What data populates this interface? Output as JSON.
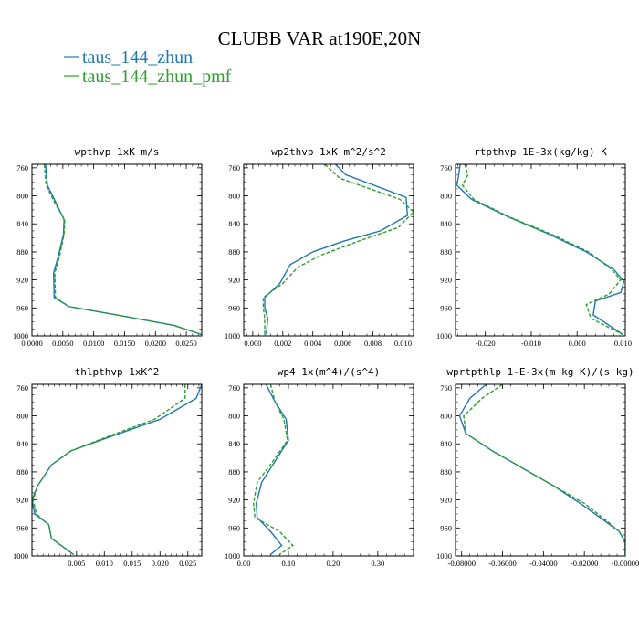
{
  "figure": {
    "title": "CLUBB VAR at190E,20N",
    "legend": [
      {
        "name": "taus_144_zhun",
        "color": "#1f77b4"
      },
      {
        "name": "taus_144_zhun_pmf",
        "color": "#2ca02c"
      }
    ]
  },
  "chart_data": [
    {
      "type": "line",
      "title": "wpthvp  1xK m/s",
      "xlim": [
        0.0,
        0.0275
      ],
      "ylim": [
        1000,
        755
      ],
      "xticks": [
        "0.0000",
        "0.0050",
        "0.0100",
        "0.0150",
        "0.0200",
        "0.0250"
      ],
      "xtick_values": [
        0.0,
        0.005,
        0.01,
        0.015,
        0.02,
        0.025
      ],
      "yticks": [
        "760",
        "800",
        "840",
        "880",
        "920",
        "960",
        "1000"
      ],
      "ytick_values": [
        760,
        800,
        840,
        880,
        920,
        960,
        1000
      ],
      "series": [
        {
          "name": "taus_144_zhun",
          "color": "#1f77b4",
          "dash": "",
          "points": [
            [
              0.0022,
              755
            ],
            [
              0.0025,
              785
            ],
            [
              0.004,
              812
            ],
            [
              0.0052,
              834
            ],
            [
              0.0051,
              855
            ],
            [
              0.0043,
              885
            ],
            [
              0.0035,
              910
            ],
            [
              0.0036,
              945
            ],
            [
              0.006,
              958
            ],
            [
              0.015,
              972
            ],
            [
              0.023,
              985
            ],
            [
              0.0275,
              998
            ]
          ]
        },
        {
          "name": "taus_144_zhun_pmf",
          "color": "#2ca02c",
          "dash": "4,2",
          "points": [
            [
              0.002,
              755
            ],
            [
              0.0023,
              785
            ],
            [
              0.0038,
              812
            ],
            [
              0.0053,
              834
            ],
            [
              0.0052,
              855
            ],
            [
              0.0045,
              885
            ],
            [
              0.0037,
              910
            ],
            [
              0.0038,
              945
            ],
            [
              0.006,
              958
            ],
            [
              0.015,
              972
            ],
            [
              0.023,
              985
            ],
            [
              0.0275,
              998
            ]
          ]
        }
      ]
    },
    {
      "type": "line",
      "title": "wp2thvp  1xK m^2/s^2",
      "xlim": [
        -0.0006,
        0.0107
      ],
      "ylim": [
        1000,
        755
      ],
      "xticks": [
        "0.000",
        "0.002",
        "0.004",
        "0.006",
        "0.008",
        "0.010"
      ],
      "xtick_values": [
        0.0,
        0.002,
        0.004,
        0.006,
        0.008,
        0.01
      ],
      "yticks": [
        "760",
        "800",
        "840",
        "880",
        "920",
        "960",
        "1000"
      ],
      "ytick_values": [
        760,
        800,
        840,
        880,
        920,
        960,
        1000
      ],
      "series": [
        {
          "name": "taus_144_zhun",
          "color": "#1f77b4",
          "dash": "",
          "points": [
            [
              0.0055,
              755
            ],
            [
              0.0062,
              770
            ],
            [
              0.0102,
              802
            ],
            [
              0.0103,
              828
            ],
            [
              0.0085,
              850
            ],
            [
              0.006,
              865
            ],
            [
              0.004,
              880
            ],
            [
              0.0025,
              898
            ],
            [
              0.0018,
              925
            ],
            [
              0.0008,
              945
            ],
            [
              0.0008,
              960
            ],
            [
              0.001,
              975
            ],
            [
              0.0009,
              998
            ]
          ]
        },
        {
          "name": "taus_144_zhun_pmf",
          "color": "#2ca02c",
          "dash": "4,2",
          "points": [
            [
              0.0048,
              755
            ],
            [
              0.0058,
              775
            ],
            [
              0.0098,
              805
            ],
            [
              0.0107,
              823
            ],
            [
              0.0097,
              845
            ],
            [
              0.007,
              865
            ],
            [
              0.0045,
              885
            ],
            [
              0.003,
              902
            ],
            [
              0.002,
              925
            ],
            [
              0.0007,
              945
            ],
            [
              0.0007,
              960
            ],
            [
              0.0008,
              975
            ],
            [
              0.0008,
              998
            ]
          ]
        }
      ]
    },
    {
      "type": "line",
      "title": "rtpthvp  1E-3x(kg/kg) K",
      "xlim": [
        -0.0265,
        0.0105
      ],
      "ylim": [
        1000,
        755
      ],
      "xticks": [
        "-0.020",
        "-0.010",
        "0.000",
        "0.010"
      ],
      "xtick_values": [
        -0.02,
        -0.01,
        0.0,
        0.01
      ],
      "yticks": [
        "760",
        "800",
        "840",
        "880",
        "920",
        "960",
        "1000"
      ],
      "ytick_values": [
        760,
        800,
        840,
        880,
        920,
        960,
        1000
      ],
      "series": [
        {
          "name": "taus_144_zhun",
          "color": "#1f77b4",
          "dash": "",
          "points": [
            [
              -0.0255,
              755
            ],
            [
              -0.0258,
              770
            ],
            [
              -0.0262,
              785
            ],
            [
              -0.023,
              805
            ],
            [
              -0.015,
              830
            ],
            [
              -0.006,
              855
            ],
            [
              0.002,
              880
            ],
            [
              0.008,
              905
            ],
            [
              0.0102,
              922
            ],
            [
              0.0095,
              938
            ],
            [
              0.004,
              950
            ],
            [
              0.0035,
              970
            ],
            [
              0.01,
              998
            ]
          ]
        },
        {
          "name": "taus_144_zhun_pmf",
          "color": "#2ca02c",
          "dash": "4,2",
          "points": [
            [
              -0.0245,
              755
            ],
            [
              -0.0238,
              770
            ],
            [
              -0.025,
              785
            ],
            [
              -0.0225,
              805
            ],
            [
              -0.0148,
              830
            ],
            [
              -0.0055,
              855
            ],
            [
              0.0025,
              880
            ],
            [
              0.0075,
              905
            ],
            [
              0.0095,
              920
            ],
            [
              0.007,
              940
            ],
            [
              0.002,
              955
            ],
            [
              0.003,
              975
            ],
            [
              0.01,
              998
            ]
          ]
        }
      ]
    },
    {
      "type": "line",
      "title": "thlpthvp  1xK^2",
      "xlim": [
        -0.003,
        0.0275
      ],
      "ylim": [
        1000,
        755
      ],
      "xticks": [
        "0.005",
        "0.010",
        "0.015",
        "0.020",
        "0.025"
      ],
      "xtick_values": [
        0.005,
        0.01,
        0.015,
        0.02,
        0.025
      ],
      "yticks": [
        "760",
        "800",
        "840",
        "880",
        "920",
        "960",
        "1000"
      ],
      "ytick_values": [
        760,
        800,
        840,
        880,
        920,
        960,
        1000
      ],
      "series": [
        {
          "name": "taus_144_zhun",
          "color": "#1f77b4",
          "dash": "",
          "points": [
            [
              0.0275,
              755
            ],
            [
              0.0265,
              775
            ],
            [
              0.02,
              805
            ],
            [
              0.011,
              830
            ],
            [
              0.004,
              850
            ],
            [
              0.0005,
              870
            ],
            [
              -0.002,
              900
            ],
            [
              -0.003,
              920
            ],
            [
              -0.0025,
              940
            ],
            [
              0.0,
              955
            ],
            [
              0.0005,
              975
            ],
            [
              0.0045,
              998
            ]
          ]
        },
        {
          "name": "taus_144_zhun_pmf",
          "color": "#2ca02c",
          "dash": "4,2",
          "points": [
            [
              0.0245,
              755
            ],
            [
              0.0245,
              775
            ],
            [
              0.019,
              805
            ],
            [
              0.0105,
              830
            ],
            [
              0.004,
              850
            ],
            [
              0.0005,
              870
            ],
            [
              -0.002,
              900
            ],
            [
              -0.0028,
              920
            ],
            [
              -0.0022,
              940
            ],
            [
              0.0,
              955
            ],
            [
              0.0005,
              975
            ],
            [
              0.0045,
              998
            ]
          ]
        }
      ]
    },
    {
      "type": "line",
      "title": "wp4  1x(m^4)/(s^4)",
      "xlim": [
        0.0,
        0.38
      ],
      "ylim": [
        1000,
        755
      ],
      "xticks": [
        "0.00",
        "0.10",
        "0.20",
        "0.30"
      ],
      "xtick_values": [
        0.0,
        0.1,
        0.2,
        0.3
      ],
      "yticks": [
        "760",
        "800",
        "840",
        "880",
        "920",
        "960",
        "1000"
      ],
      "ytick_values": [
        760,
        800,
        840,
        880,
        920,
        960,
        1000
      ],
      "series": [
        {
          "name": "taus_144_zhun",
          "color": "#1f77b4",
          "dash": "",
          "points": [
            [
              0.05,
              755
            ],
            [
              0.07,
              780
            ],
            [
              0.095,
              805
            ],
            [
              0.1,
              835
            ],
            [
              0.07,
              865
            ],
            [
              0.04,
              895
            ],
            [
              0.028,
              925
            ],
            [
              0.03,
              945
            ],
            [
              0.06,
              965
            ],
            [
              0.085,
              985
            ],
            [
              0.06,
              998
            ]
          ]
        },
        {
          "name": "taus_144_zhun_pmf",
          "color": "#2ca02c",
          "dash": "4,2",
          "points": [
            [
              0.06,
              755
            ],
            [
              0.07,
              780
            ],
            [
              0.09,
              805
            ],
            [
              0.098,
              835
            ],
            [
              0.065,
              865
            ],
            [
              0.03,
              895
            ],
            [
              0.022,
              925
            ],
            [
              0.025,
              945
            ],
            [
              0.08,
              965
            ],
            [
              0.11,
              985
            ],
            [
              0.08,
              998
            ]
          ]
        }
      ]
    },
    {
      "type": "line",
      "title": "wprtpthlp  1-E-3x(m kg K)/(s kg)",
      "xlim": [
        -0.083,
        0.0
      ],
      "ylim": [
        1000,
        755
      ],
      "xticks": [
        "-0.08000",
        "-0.06000",
        "-0.04000",
        "-0.02000",
        "-0.00000"
      ],
      "xtick_values": [
        -0.08,
        -0.06,
        -0.04,
        -0.02,
        0.0
      ],
      "yticks": [
        "760",
        "800",
        "840",
        "880",
        "920",
        "960",
        "1000"
      ],
      "ytick_values": [
        760,
        800,
        840,
        880,
        920,
        960,
        1000
      ],
      "series": [
        {
          "name": "taus_144_zhun",
          "color": "#1f77b4",
          "dash": "",
          "points": [
            [
              -0.068,
              755
            ],
            [
              -0.076,
              775
            ],
            [
              -0.081,
              800
            ],
            [
              -0.078,
              825
            ],
            [
              -0.065,
              850
            ],
            [
              -0.05,
              875
            ],
            [
              -0.035,
              900
            ],
            [
              -0.022,
              925
            ],
            [
              -0.01,
              950
            ],
            [
              -0.003,
              965
            ],
            [
              0.0,
              980
            ],
            [
              0.0,
              998
            ]
          ]
        },
        {
          "name": "taus_144_zhun_pmf",
          "color": "#2ca02c",
          "dash": "4,2",
          "points": [
            [
              -0.06,
              755
            ],
            [
              -0.07,
              775
            ],
            [
              -0.079,
              800
            ],
            [
              -0.078,
              825
            ],
            [
              -0.065,
              850
            ],
            [
              -0.05,
              875
            ],
            [
              -0.035,
              900
            ],
            [
              -0.02,
              925
            ],
            [
              -0.009,
              950
            ],
            [
              -0.003,
              965
            ],
            [
              0.0,
              980
            ],
            [
              0.0,
              998
            ]
          ]
        }
      ]
    }
  ]
}
